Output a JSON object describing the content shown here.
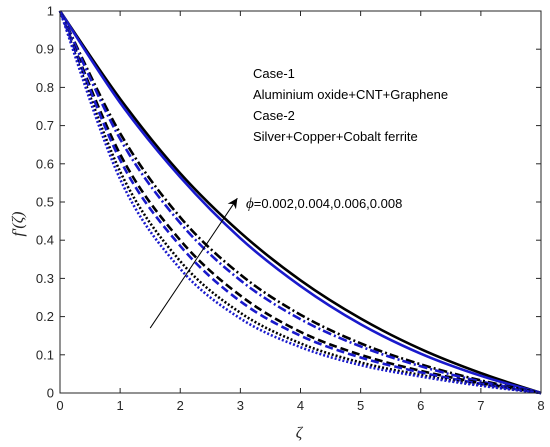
{
  "chart_data": {
    "type": "line",
    "xlabel": "ζ",
    "ylabel": "f'(ζ)",
    "xlim": [
      0,
      8
    ],
    "ylim": [
      0,
      1
    ],
    "xticks": [
      0,
      1,
      2,
      3,
      4,
      5,
      6,
      7,
      8
    ],
    "yticks": [
      0,
      0.1,
      0.2,
      0.3,
      0.4,
      0.5,
      0.6,
      0.7,
      0.8,
      0.9,
      1
    ],
    "grid": false,
    "legend_text": [
      "Case-1",
      "Aluminium oxide+CNT+Graphene",
      "Case-2",
      "Silver+Copper+Cobalt ferrite"
    ],
    "annotation": {
      "phi_symbol": "ϕ",
      "phi_values": "=0.002,0.004,0.006,0.008",
      "arrow_from": [
        1.5,
        0.17
      ],
      "arrow_to": [
        2.95,
        0.51
      ]
    },
    "series": [
      {
        "case": 1,
        "phi": 0.008,
        "color": "#000000",
        "dash": "solid",
        "x": [
          0,
          1,
          2,
          3,
          4,
          5,
          6,
          7,
          8
        ],
        "y": [
          1,
          0.77,
          0.575,
          0.42,
          0.295,
          0.195,
          0.115,
          0.052,
          0
        ]
      },
      {
        "case": 2,
        "phi": 0.008,
        "color": "#1a1acc",
        "dash": "solid",
        "x": [
          0,
          1,
          2,
          3,
          4,
          5,
          6,
          7,
          8
        ],
        "y": [
          1,
          0.76,
          0.565,
          0.405,
          0.28,
          0.18,
          0.103,
          0.045,
          0
        ]
      },
      {
        "case": 1,
        "phi": 0.006,
        "color": "#000000",
        "dash": "dashdot",
        "x": [
          0,
          1,
          2,
          3,
          4,
          5,
          6,
          7,
          8
        ],
        "y": [
          1,
          0.68,
          0.46,
          0.31,
          0.205,
          0.13,
          0.075,
          0.033,
          0
        ]
      },
      {
        "case": 2,
        "phi": 0.006,
        "color": "#1a1acc",
        "dash": "dashdot",
        "x": [
          0,
          1,
          2,
          3,
          4,
          5,
          6,
          7,
          8
        ],
        "y": [
          1,
          0.665,
          0.445,
          0.295,
          0.193,
          0.122,
          0.07,
          0.03,
          0
        ]
      },
      {
        "case": 1,
        "phi": 0.004,
        "color": "#000000",
        "dash": "dash",
        "x": [
          0,
          1,
          2,
          3,
          4,
          5,
          6,
          7,
          8
        ],
        "y": [
          1,
          0.625,
          0.4,
          0.255,
          0.16,
          0.1,
          0.058,
          0.026,
          0
        ]
      },
      {
        "case": 2,
        "phi": 0.004,
        "color": "#1a1acc",
        "dash": "dash",
        "x": [
          0,
          1,
          2,
          3,
          4,
          5,
          6,
          7,
          8
        ],
        "y": [
          1,
          0.61,
          0.385,
          0.24,
          0.15,
          0.093,
          0.054,
          0.024,
          0
        ]
      },
      {
        "case": 1,
        "phi": 0.002,
        "color": "#000000",
        "dash": "dot",
        "x": [
          0,
          1,
          2,
          3,
          4,
          5,
          6,
          7,
          8
        ],
        "y": [
          1,
          0.58,
          0.345,
          0.21,
          0.13,
          0.08,
          0.047,
          0.021,
          0
        ]
      },
      {
        "case": 2,
        "phi": 0.002,
        "color": "#1a1acc",
        "dash": "dot",
        "x": [
          0,
          1,
          2,
          3,
          4,
          5,
          6,
          7,
          8
        ],
        "y": [
          1,
          0.56,
          0.325,
          0.195,
          0.12,
          0.073,
          0.043,
          0.019,
          0
        ]
      }
    ]
  }
}
